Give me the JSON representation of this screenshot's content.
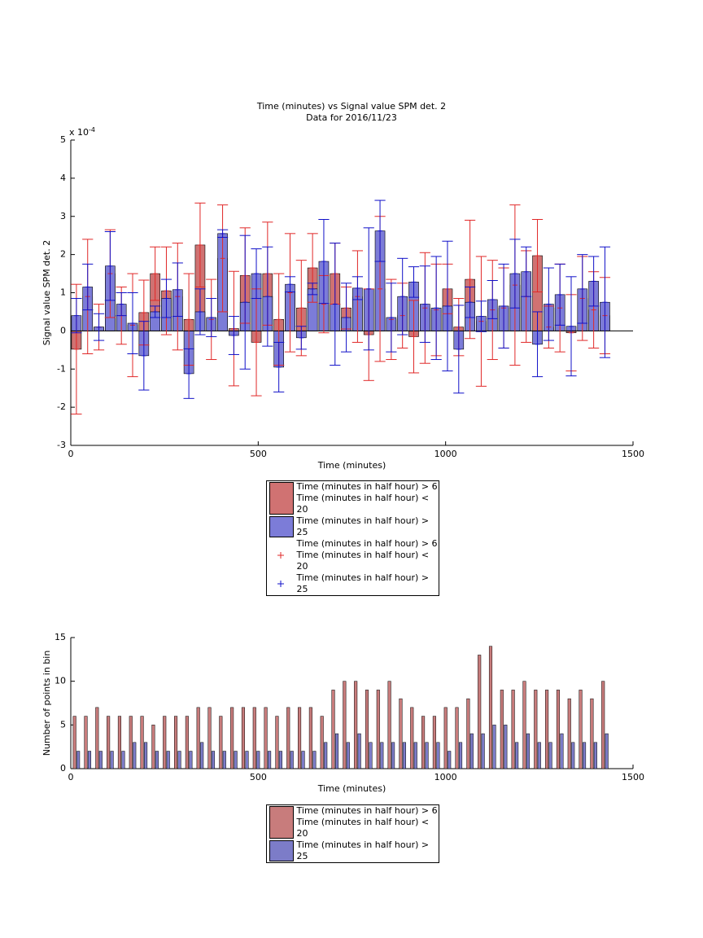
{
  "chart_data": [
    {
      "type": "overlay_bar_errorbar",
      "title": "Time (minutes) vs Signal value SPM det. 2",
      "subtitle": "Data for 2016/11/23",
      "xlabel": "Time (minutes)",
      "ylabel": "Signal value SPM det. 2",
      "y_multiplier": {
        "base": "x 10",
        "exponent": "-4"
      },
      "x": [
        15,
        45,
        75,
        105,
        135,
        165,
        195,
        225,
        255,
        285,
        315,
        345,
        375,
        405,
        435,
        465,
        495,
        525,
        555,
        585,
        615,
        645,
        675,
        705,
        735,
        765,
        795,
        825,
        855,
        885,
        915,
        945,
        975,
        1005,
        1035,
        1065,
        1095,
        1125,
        1155,
        1185,
        1215,
        1245,
        1275,
        1305,
        1335,
        1365,
        1395,
        1425
      ],
      "xlim": [
        0,
        1500
      ],
      "xticks": [
        0,
        500,
        1000,
        1500
      ],
      "ylim": [
        -3,
        5
      ],
      "yticks": [
        -3,
        -2,
        -1,
        0,
        1,
        2,
        3,
        4,
        5
      ],
      "series": [
        {
          "name": "Time (minutes in half hour) > 6\nTime (minutes in half hour) < 20",
          "color": "#d07272",
          "error_color": "#e02828",
          "values": [
            -0.48,
            0.9,
            0.1,
            1.5,
            0.4,
            0.15,
            0.48,
            1.5,
            1.05,
            0.9,
            0.3,
            2.25,
            0.3,
            1.9,
            0.06,
            1.45,
            -0.3,
            1.5,
            0.3,
            1.0,
            0.6,
            1.65,
            0.7,
            1.5,
            0.6,
            0.9,
            -0.1,
            1.1,
            0.3,
            0.4,
            -0.15,
            0.6,
            0.55,
            1.1,
            0.1,
            1.35,
            0.25,
            0.55,
            0.6,
            1.2,
            0.9,
            1.97,
            0.1,
            0.6,
            -0.05,
            0.85,
            0.55,
            0.4
          ],
          "errors": [
            1.7,
            1.5,
            0.6,
            1.15,
            0.75,
            1.35,
            0.85,
            0.7,
            1.15,
            1.4,
            1.2,
            1.1,
            1.05,
            1.4,
            1.5,
            1.25,
            1.4,
            1.35,
            1.2,
            1.55,
            1.25,
            0.9,
            0.75,
            0.8,
            0.55,
            1.2,
            1.2,
            1.9,
            1.05,
            0.85,
            0.95,
            1.45,
            1.2,
            0.65,
            0.75,
            1.55,
            1.7,
            1.3,
            1.05,
            2.1,
            1.2,
            0.95,
            0.55,
            1.15,
            1.0,
            1.1,
            1.0,
            1.0
          ]
        },
        {
          "name": "Time (minutes in half hour) > 25",
          "color": "#7c7cd8",
          "error_color": "#1010c8",
          "values": [
            0.4,
            1.15,
            0.1,
            1.7,
            0.7,
            0.2,
            -0.65,
            0.5,
            0.85,
            1.08,
            -1.12,
            0.5,
            0.35,
            2.55,
            -0.12,
            0.75,
            1.5,
            0.9,
            -0.95,
            1.22,
            -0.18,
            1.1,
            1.82,
            0.7,
            0.35,
            1.12,
            1.1,
            2.62,
            0.35,
            0.9,
            1.28,
            0.7,
            0.6,
            0.65,
            -0.48,
            0.75,
            0.38,
            0.82,
            0.65,
            1.5,
            1.55,
            -0.35,
            0.7,
            0.95,
            0.12,
            1.1,
            1.3,
            0.75
          ],
          "errors": [
            0.45,
            0.6,
            0.35,
            0.9,
            0.3,
            0.8,
            0.9,
            0.15,
            0.5,
            0.7,
            0.65,
            0.6,
            0.5,
            0.1,
            0.5,
            1.75,
            0.65,
            1.3,
            0.65,
            0.2,
            0.3,
            0.15,
            1.1,
            1.6,
            0.9,
            0.3,
            1.6,
            0.8,
            0.9,
            1.0,
            0.4,
            1.0,
            1.35,
            1.7,
            1.15,
            0.4,
            0.4,
            0.5,
            1.1,
            0.9,
            0.65,
            0.85,
            0.95,
            0.8,
            1.3,
            0.9,
            0.65,
            1.45
          ]
        }
      ]
    },
    {
      "type": "grouped_bar",
      "xlabel": "Time (minutes)",
      "ylabel": "Number of points in bin",
      "x": [
        15,
        45,
        75,
        105,
        135,
        165,
        195,
        225,
        255,
        285,
        315,
        345,
        375,
        405,
        435,
        465,
        495,
        525,
        555,
        585,
        615,
        645,
        675,
        705,
        735,
        765,
        795,
        825,
        855,
        885,
        915,
        945,
        975,
        1005,
        1035,
        1065,
        1095,
        1125,
        1155,
        1185,
        1215,
        1245,
        1275,
        1305,
        1335,
        1365,
        1395,
        1425
      ],
      "xlim": [
        0,
        1500
      ],
      "xticks": [
        0,
        500,
        1000,
        1500
      ],
      "ylim": [
        0,
        15
      ],
      "yticks": [
        0,
        5,
        10,
        15
      ],
      "series": [
        {
          "name": "Time (minutes in half hour) > 6\nTime (minutes in half hour) < 20",
          "color": "#c87c7c",
          "values": [
            6,
            6,
            7,
            6,
            6,
            6,
            6,
            5,
            6,
            6,
            6,
            7,
            7,
            6,
            7,
            7,
            7,
            7,
            6,
            7,
            7,
            7,
            6,
            9,
            10,
            10,
            9,
            9,
            10,
            8,
            7,
            6,
            6,
            7,
            7,
            8,
            13,
            14,
            9,
            9,
            10,
            9,
            9,
            9,
            8,
            9,
            8,
            10
          ]
        },
        {
          "name": "Time (minutes in half hour) > 25",
          "color": "#7c7cc8",
          "values": [
            2,
            2,
            2,
            2,
            2,
            3,
            3,
            2,
            2,
            2,
            2,
            3,
            2,
            2,
            2,
            2,
            2,
            2,
            2,
            2,
            2,
            2,
            3,
            4,
            3,
            4,
            3,
            3,
            3,
            3,
            3,
            3,
            3,
            2,
            3,
            4,
            4,
            5,
            5,
            3,
            4,
            3,
            3,
            4,
            3,
            3,
            3,
            4
          ]
        }
      ]
    }
  ]
}
